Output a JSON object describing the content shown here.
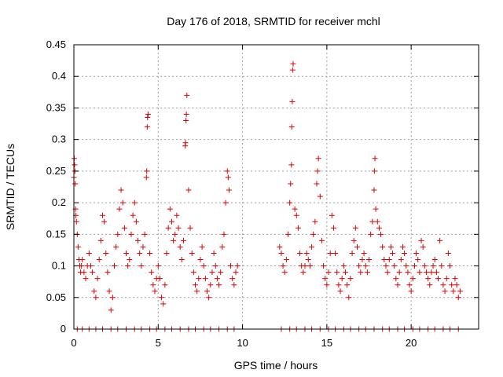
{
  "chart_data": {
    "type": "scatter",
    "title": "Day 176 of 2018, SRMTID for receiver mchl",
    "xlabel": "GPS time / hours",
    "ylabel": "SRMTID / TECUs",
    "xlim": [
      0,
      24
    ],
    "ylim": [
      0,
      0.45
    ],
    "xticks": [
      0,
      5,
      10,
      15,
      20
    ],
    "yticks": [
      0,
      0.05,
      0.1,
      0.15,
      0.2,
      0.25,
      0.3,
      0.35,
      0.4,
      0.45
    ],
    "xtick_labels": [
      "0",
      "5",
      "10",
      "15",
      "20"
    ],
    "ytick_labels": [
      "0",
      "0.05",
      "0.1",
      "0.15",
      "0.2",
      "0.25",
      "0.3",
      "0.35",
      "0.4",
      "0.45"
    ],
    "grid": true,
    "marker": "+",
    "color": "#e00000",
    "series": [
      {
        "name": "SRMTID",
        "points": [
          [
            0.0,
            0.24
          ],
          [
            0.02,
            0.27
          ],
          [
            0.04,
            0.26
          ],
          [
            0.06,
            0.25
          ],
          [
            0.08,
            0.23
          ],
          [
            0.1,
            0.19
          ],
          [
            0.12,
            0.18
          ],
          [
            0.15,
            0.17
          ],
          [
            0.2,
            0.15
          ],
          [
            0.25,
            0.13
          ],
          [
            0.3,
            0.11
          ],
          [
            0.35,
            0.1
          ],
          [
            0.4,
            0.09
          ],
          [
            0.45,
            0.1
          ],
          [
            0.5,
            0.11
          ],
          [
            0.6,
            0.09
          ],
          [
            0.7,
            0.08
          ],
          [
            0.8,
            0.1
          ],
          [
            0.9,
            0.12
          ],
          [
            1.0,
            0.1
          ],
          [
            1.1,
            0.09
          ],
          [
            1.2,
            0.06
          ],
          [
            1.3,
            0.05
          ],
          [
            1.4,
            0.08
          ],
          [
            1.5,
            0.11
          ],
          [
            1.6,
            0.14
          ],
          [
            1.7,
            0.18
          ],
          [
            1.8,
            0.17
          ],
          [
            1.9,
            0.12
          ],
          [
            2.0,
            0.09
          ],
          [
            2.1,
            0.06
          ],
          [
            2.2,
            0.03
          ],
          [
            2.3,
            0.05
          ],
          [
            2.4,
            0.1
          ],
          [
            2.5,
            0.13
          ],
          [
            2.6,
            0.15
          ],
          [
            2.7,
            0.19
          ],
          [
            2.8,
            0.22
          ],
          [
            2.9,
            0.2
          ],
          [
            3.0,
            0.16
          ],
          [
            3.1,
            0.12
          ],
          [
            3.2,
            0.1
          ],
          [
            3.3,
            0.11
          ],
          [
            3.4,
            0.15
          ],
          [
            3.5,
            0.18
          ],
          [
            3.6,
            0.2
          ],
          [
            3.7,
            0.17
          ],
          [
            3.8,
            0.14
          ],
          [
            3.9,
            0.12
          ],
          [
            4.0,
            0.1
          ],
          [
            4.1,
            0.13
          ],
          [
            4.2,
            0.15
          ],
          [
            4.3,
            0.24
          ],
          [
            4.32,
            0.25
          ],
          [
            4.35,
            0.32
          ],
          [
            4.37,
            0.335
          ],
          [
            4.4,
            0.34
          ],
          [
            4.5,
            0.12
          ],
          [
            4.6,
            0.09
          ],
          [
            4.7,
            0.07
          ],
          [
            4.8,
            0.06
          ],
          [
            4.9,
            0.08
          ],
          [
            5.0,
            0.1
          ],
          [
            5.1,
            0.08
          ],
          [
            5.2,
            0.05
          ],
          [
            5.3,
            0.04
          ],
          [
            5.4,
            0.07
          ],
          [
            5.5,
            0.12
          ],
          [
            5.6,
            0.16
          ],
          [
            5.7,
            0.19
          ],
          [
            5.8,
            0.17
          ],
          [
            5.9,
            0.14
          ],
          [
            6.0,
            0.15
          ],
          [
            6.1,
            0.18
          ],
          [
            6.2,
            0.16
          ],
          [
            6.3,
            0.13
          ],
          [
            6.4,
            0.11
          ],
          [
            6.5,
            0.14
          ],
          [
            6.6,
            0.29
          ],
          [
            6.62,
            0.295
          ],
          [
            6.65,
            0.33
          ],
          [
            6.67,
            0.34
          ],
          [
            6.7,
            0.37
          ],
          [
            6.8,
            0.22
          ],
          [
            6.9,
            0.16
          ],
          [
            7.0,
            0.12
          ],
          [
            7.1,
            0.09
          ],
          [
            7.2,
            0.07
          ],
          [
            7.3,
            0.06
          ],
          [
            7.4,
            0.08
          ],
          [
            7.5,
            0.11
          ],
          [
            7.6,
            0.13
          ],
          [
            7.7,
            0.1
          ],
          [
            7.8,
            0.08
          ],
          [
            7.9,
            0.06
          ],
          [
            8.0,
            0.05
          ],
          [
            8.1,
            0.07
          ],
          [
            8.2,
            0.09
          ],
          [
            8.3,
            0.12
          ],
          [
            8.4,
            0.1
          ],
          [
            8.5,
            0.08
          ],
          [
            8.6,
            0.07
          ],
          [
            8.7,
            0.09
          ],
          [
            8.8,
            0.13
          ],
          [
            8.9,
            0.15
          ],
          [
            9.0,
            0.2
          ],
          [
            9.1,
            0.25
          ],
          [
            9.15,
            0.24
          ],
          [
            9.2,
            0.22
          ],
          [
            9.3,
            0.1
          ],
          [
            9.4,
            0.08
          ],
          [
            9.5,
            0.07
          ],
          [
            9.6,
            0.09
          ],
          [
            9.7,
            0.1
          ],
          [
            12.2,
            0.13
          ],
          [
            12.3,
            0.12
          ],
          [
            12.4,
            0.1
          ],
          [
            12.5,
            0.09
          ],
          [
            12.6,
            0.11
          ],
          [
            12.7,
            0.15
          ],
          [
            12.8,
            0.2
          ],
          [
            12.85,
            0.23
          ],
          [
            12.9,
            0.26
          ],
          [
            12.92,
            0.32
          ],
          [
            12.95,
            0.36
          ],
          [
            12.97,
            0.41
          ],
          [
            13.0,
            0.42
          ],
          [
            13.1,
            0.19
          ],
          [
            13.2,
            0.18
          ],
          [
            13.3,
            0.16
          ],
          [
            13.4,
            0.12
          ],
          [
            13.5,
            0.1
          ],
          [
            13.6,
            0.09
          ],
          [
            13.7,
            0.1
          ],
          [
            13.8,
            0.12
          ],
          [
            13.9,
            0.11
          ],
          [
            14.0,
            0.1
          ],
          [
            14.1,
            0.13
          ],
          [
            14.2,
            0.15
          ],
          [
            14.3,
            0.17
          ],
          [
            14.4,
            0.23
          ],
          [
            14.45,
            0.25
          ],
          [
            14.5,
            0.27
          ],
          [
            14.6,
            0.21
          ],
          [
            14.7,
            0.14
          ],
          [
            14.8,
            0.1
          ],
          [
            14.9,
            0.08
          ],
          [
            15.0,
            0.07
          ],
          [
            15.1,
            0.09
          ],
          [
            15.2,
            0.12
          ],
          [
            15.3,
            0.18
          ],
          [
            15.4,
            0.16
          ],
          [
            15.5,
            0.12
          ],
          [
            15.6,
            0.09
          ],
          [
            15.7,
            0.07
          ],
          [
            15.8,
            0.06
          ],
          [
            15.9,
            0.08
          ],
          [
            16.0,
            0.1
          ],
          [
            16.1,
            0.09
          ],
          [
            16.2,
            0.07
          ],
          [
            16.3,
            0.05
          ],
          [
            16.4,
            0.08
          ],
          [
            16.5,
            0.12
          ],
          [
            16.6,
            0.14
          ],
          [
            16.7,
            0.16
          ],
          [
            16.8,
            0.13
          ],
          [
            16.9,
            0.1
          ],
          [
            17.0,
            0.09
          ],
          [
            17.1,
            0.11
          ],
          [
            17.2,
            0.12
          ],
          [
            17.3,
            0.1
          ],
          [
            17.4,
            0.09
          ],
          [
            17.5,
            0.11
          ],
          [
            17.6,
            0.15
          ],
          [
            17.7,
            0.17
          ],
          [
            17.8,
            0.22
          ],
          [
            17.82,
            0.25
          ],
          [
            17.85,
            0.27
          ],
          [
            17.9,
            0.19
          ],
          [
            18.0,
            0.17
          ],
          [
            18.1,
            0.16
          ],
          [
            18.2,
            0.15
          ],
          [
            18.3,
            0.13
          ],
          [
            18.4,
            0.11
          ],
          [
            18.5,
            0.1
          ],
          [
            18.6,
            0.09
          ],
          [
            18.7,
            0.11
          ],
          [
            18.8,
            0.13
          ],
          [
            18.9,
            0.12
          ],
          [
            19.0,
            0.1
          ],
          [
            19.1,
            0.08
          ],
          [
            19.2,
            0.07
          ],
          [
            19.3,
            0.09
          ],
          [
            19.4,
            0.11
          ],
          [
            19.5,
            0.13
          ],
          [
            19.6,
            0.12
          ],
          [
            19.7,
            0.1
          ],
          [
            19.8,
            0.09
          ],
          [
            19.9,
            0.07
          ],
          [
            20.0,
            0.06
          ],
          [
            20.1,
            0.08
          ],
          [
            20.2,
            0.1
          ],
          [
            20.3,
            0.12
          ],
          [
            20.4,
            0.11
          ],
          [
            20.5,
            0.09
          ],
          [
            20.6,
            0.14
          ],
          [
            20.7,
            0.13
          ],
          [
            20.8,
            0.1
          ],
          [
            20.9,
            0.09
          ],
          [
            21.0,
            0.08
          ],
          [
            21.1,
            0.07
          ],
          [
            21.2,
            0.09
          ],
          [
            21.3,
            0.1
          ],
          [
            21.4,
            0.11
          ],
          [
            21.5,
            0.09
          ],
          [
            21.6,
            0.08
          ],
          [
            21.7,
            0.14
          ],
          [
            21.8,
            0.1
          ],
          [
            21.9,
            0.07
          ],
          [
            22.0,
            0.06
          ],
          [
            22.1,
            0.08
          ],
          [
            22.2,
            0.12
          ],
          [
            22.3,
            0.1
          ],
          [
            22.4,
            0.07
          ],
          [
            22.5,
            0.06
          ],
          [
            22.6,
            0.08
          ],
          [
            22.7,
            0.07
          ],
          [
            22.8,
            0.05
          ],
          [
            22.9,
            0.06
          ],
          [
            0.2,
            0.0
          ],
          [
            0.5,
            0.0
          ],
          [
            0.9,
            0.0
          ],
          [
            1.3,
            0.0
          ],
          [
            1.7,
            0.0
          ],
          [
            2.2,
            0.0
          ],
          [
            2.6,
            0.0
          ],
          [
            3.1,
            0.0
          ],
          [
            3.6,
            0.0
          ],
          [
            4.0,
            0.0
          ],
          [
            4.5,
            0.0
          ],
          [
            4.9,
            0.0
          ],
          [
            5.4,
            0.0
          ],
          [
            5.8,
            0.0
          ],
          [
            6.3,
            0.0
          ],
          [
            6.8,
            0.0
          ],
          [
            7.2,
            0.0
          ],
          [
            7.7,
            0.0
          ],
          [
            8.1,
            0.0
          ],
          [
            8.6,
            0.0
          ],
          [
            9.1,
            0.0
          ],
          [
            9.5,
            0.0
          ],
          [
            12.3,
            0.0
          ],
          [
            12.8,
            0.0
          ],
          [
            13.2,
            0.0
          ],
          [
            13.7,
            0.0
          ],
          [
            14.1,
            0.0
          ],
          [
            14.6,
            0.0
          ],
          [
            15.1,
            0.0
          ],
          [
            15.5,
            0.0
          ],
          [
            16.0,
            0.0
          ],
          [
            16.4,
            0.0
          ],
          [
            16.9,
            0.0
          ],
          [
            17.3,
            0.0
          ],
          [
            17.8,
            0.0
          ],
          [
            18.3,
            0.0
          ],
          [
            18.7,
            0.0
          ],
          [
            19.2,
            0.0
          ],
          [
            19.6,
            0.0
          ],
          [
            20.1,
            0.0
          ],
          [
            20.5,
            0.0
          ],
          [
            21.0,
            0.0
          ],
          [
            21.4,
            0.0
          ],
          [
            21.9,
            0.0
          ],
          [
            22.3,
            0.0
          ],
          [
            22.8,
            0.0
          ]
        ]
      }
    ]
  }
}
